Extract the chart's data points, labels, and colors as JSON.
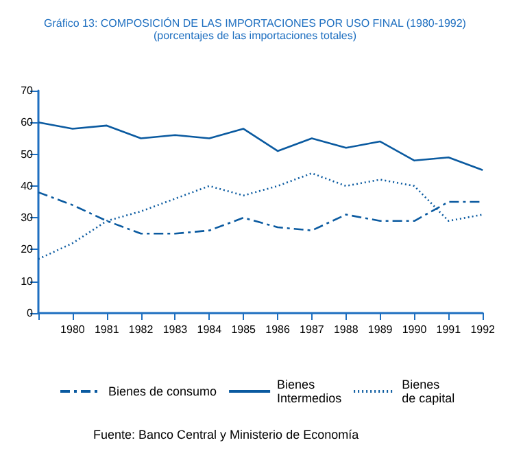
{
  "chart_data": {
    "type": "line",
    "title": "Gráfico 13: COMPOSICIÓN DE LAS IMPORTACIONES POR USO FINAL (1980-1992)",
    "subtitle": "(porcentajes de las importaciones totales)",
    "categories": [
      null,
      "1980",
      "1981",
      "1982",
      "1983",
      "1984",
      "1985",
      "1986",
      "1987",
      "1988",
      "1989",
      "1990",
      "1991",
      "1992"
    ],
    "series": [
      {
        "name": "Bienes de consumo",
        "color": "#0a5aa0",
        "line_style": "dashed",
        "values": [
          38,
          34,
          29,
          25,
          25,
          26,
          30,
          27,
          26,
          31,
          29,
          29,
          35,
          35
        ]
      },
      {
        "name": "Bienes\nIntermedios",
        "color": "#0a5aa0",
        "line_style": "solid",
        "values": [
          60,
          58,
          59,
          55,
          56,
          55,
          58,
          51,
          55,
          52,
          54,
          48,
          49,
          45
        ]
      },
      {
        "name": "Bienes\nde capital",
        "color": "#0a5aa0",
        "line_style": "dotted",
        "values": [
          17,
          22,
          29,
          32,
          36,
          40,
          37,
          40,
          44,
          40,
          42,
          40,
          29,
          31
        ]
      }
    ],
    "ylim": [
      0,
      70
    ],
    "yticks": [
      0,
      10,
      20,
      30,
      40,
      50,
      60,
      70
    ],
    "grid": false,
    "legend": "bottom",
    "marker": "none",
    "annotations": [
      "Fuente: Banco Central y Ministerio de Economía"
    ]
  }
}
